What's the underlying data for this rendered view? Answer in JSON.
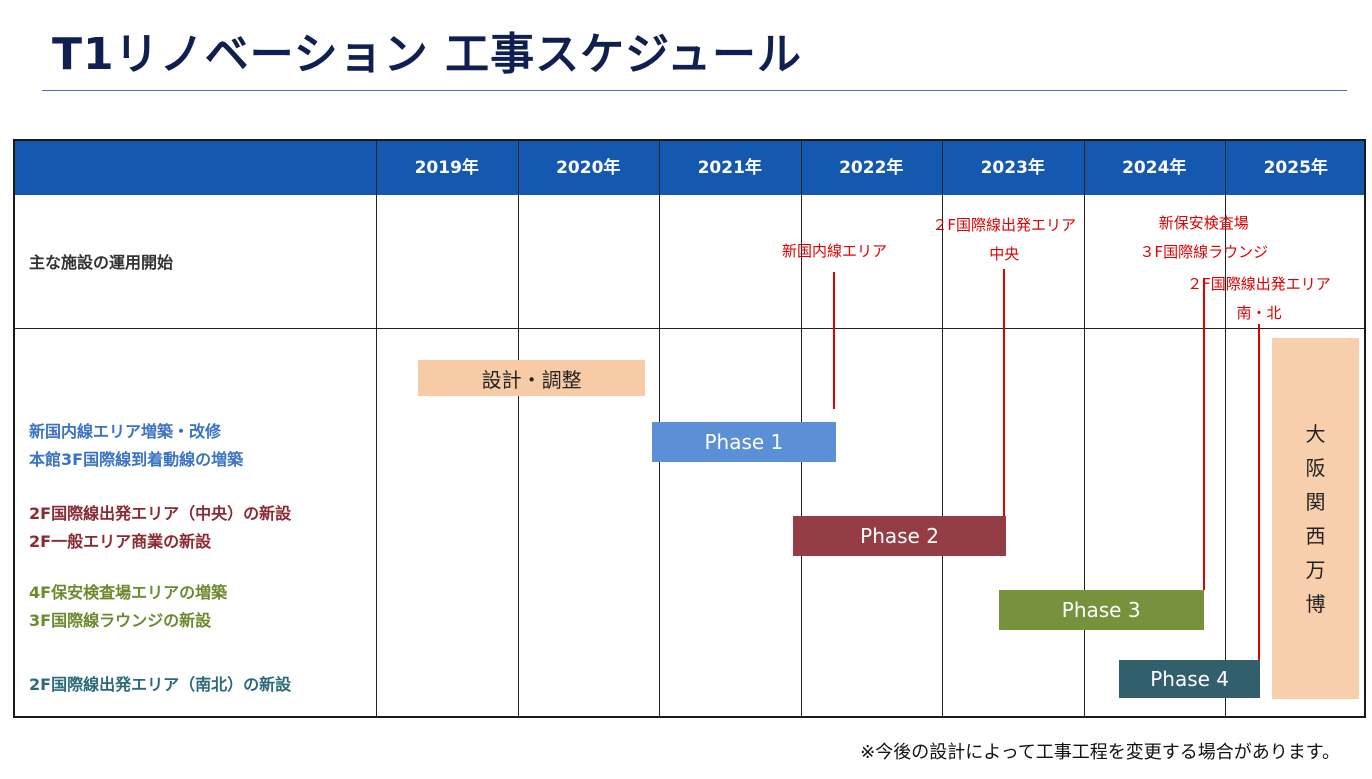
{
  "title": "T1リノベーション 工事スケジュール",
  "footnote": "※今後の設計によって工事工程を変更する場合があります。",
  "chart_data": {
    "type": "gantt",
    "years": [
      "2019年",
      "2020年",
      "2021年",
      "2022年",
      "2023年",
      "2024年",
      "2025年"
    ],
    "facility_row_label": "主な施設の運用開始",
    "tasks": [
      {
        "label": "設計・調整",
        "start": 2019.3,
        "end": 2020.9,
        "color": "#f8cba7"
      },
      {
        "label": "Phase 1",
        "start": 2020.95,
        "end": 2022.25,
        "color": "#5b8fd6",
        "description": [
          "新国内線エリア増築・改修",
          "本館3F国際線到着動線の増築"
        ]
      },
      {
        "label": "Phase 2",
        "start": 2021.95,
        "end": 2023.45,
        "color": "#943d45",
        "description": [
          "2F国際線出発エリア（中央）の新設",
          "2F一般エリア商業の新設"
        ]
      },
      {
        "label": "Phase 3",
        "start": 2023.4,
        "end": 2024.85,
        "color": "#76923c",
        "description": [
          "4F保安検査場エリアの増築",
          "3F国際線ラウンジの新設"
        ]
      },
      {
        "label": "Phase 4",
        "start": 2024.25,
        "end": 2025.25,
        "color": "#31606c",
        "description": [
          "2F国際線出発エリア（南北）の新設"
        ]
      }
    ],
    "event": {
      "label": [
        "大",
        "阪",
        "関",
        "西",
        "万",
        "博"
      ],
      "start": 2025.33,
      "end": 2025.95,
      "color": "#f8cfad"
    },
    "milestones": [
      {
        "text": [
          "新国内線エリア"
        ],
        "x": 2022.24
      },
      {
        "text": [
          "２F国際線出発エリア",
          "中央"
        ],
        "x": 2023.44
      },
      {
        "text": [
          "新保安検査場",
          "３F国際線ラウンジ"
        ],
        "x": 2024.85
      },
      {
        "text": [
          "２F国際線出発エリア",
          "南・北"
        ],
        "x": 2025.24
      }
    ]
  }
}
